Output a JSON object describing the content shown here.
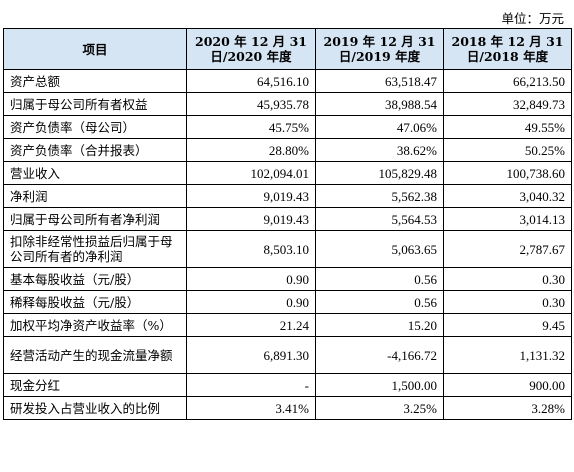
{
  "unit": "单位：万元",
  "headers": {
    "item": "项目",
    "y2020": "2020 年 12 月 31 日/2020 年度",
    "y2019": "2019 年 12 月 31 日/2019 年度",
    "y2018": "2018 年 12 月 31 日/2018 年度"
  },
  "rows": [
    {
      "label": "资产总额",
      "v2020": "64,516.10",
      "v2019": "63,518.47",
      "v2018": "66,213.50"
    },
    {
      "label": "归属于母公司所有者权益",
      "v2020": "45,935.78",
      "v2019": "38,988.54",
      "v2018": "32,849.73"
    },
    {
      "label": "资产负债率（母公司）",
      "v2020": "45.75%",
      "v2019": "47.06%",
      "v2018": "49.55%"
    },
    {
      "label": "资产负债率（合并报表）",
      "v2020": "28.80%",
      "v2019": "38.62%",
      "v2018": "50.25%"
    },
    {
      "label": "营业收入",
      "v2020": "102,094.01",
      "v2019": "105,829.48",
      "v2018": "100,738.60"
    },
    {
      "label": "净利润",
      "v2020": "9,019.43",
      "v2019": "5,562.38",
      "v2018": "3,040.32"
    },
    {
      "label": "归属于母公司所有者净利润",
      "v2020": "9,019.43",
      "v2019": "5,564.53",
      "v2018": "3,014.13"
    },
    {
      "label": "扣除非经常性损益后归属于母公司所有者的净利润",
      "v2020": "8,503.10",
      "v2019": "5,063.65",
      "v2018": "2,787.67"
    },
    {
      "label": "基本每股收益（元/股）",
      "v2020": "0.90",
      "v2019": "0.56",
      "v2018": "0.30"
    },
    {
      "label": "稀释每股收益（元/股）",
      "v2020": "0.90",
      "v2019": "0.56",
      "v2018": "0.30"
    },
    {
      "label": "加权平均净资产收益率（%）",
      "v2020": "21.24",
      "v2019": "15.20",
      "v2018": "9.45"
    },
    {
      "label": "经营活动产生的现金流量净额",
      "v2020": "6,891.30",
      "v2019": "-4,166.72",
      "v2018": "1,131.32"
    },
    {
      "label": "现金分红",
      "v2020": "-",
      "v2019": "1,500.00",
      "v2018": "900.00"
    },
    {
      "label": "研发投入占营业收入的比例",
      "v2020": "3.41%",
      "v2019": "3.25%",
      "v2018": "3.28%"
    }
  ]
}
